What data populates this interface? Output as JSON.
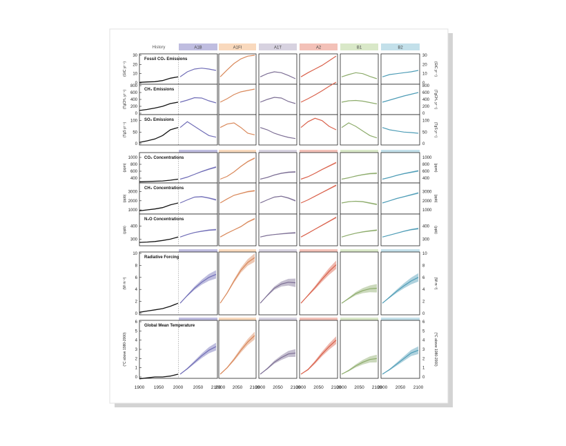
{
  "figure": {
    "history_label": "History",
    "scenarios": [
      {
        "name": "A1B",
        "color": "#6f6cb6",
        "tab": "#bfbde0"
      },
      {
        "name": "A1FI",
        "color": "#d9885a",
        "tab": "#f9d9bd"
      },
      {
        "name": "A1T",
        "color": "#7c6e94",
        "tab": "#d7d2e0"
      },
      {
        "name": "A2",
        "color": "#d9604a",
        "tab": "#f3c1b8"
      },
      {
        "name": "B1",
        "color": "#8cab6a",
        "tab": "#d9e8c8"
      },
      {
        "name": "B2",
        "color": "#4d9cb6",
        "tab": "#c3e0ea"
      }
    ],
    "panels": [
      {
        "title": "Fossil CO₂ Emissions",
        "unit_left": "(GtC yr⁻¹)",
        "unit_right": "(GtC yr⁻¹)",
        "ticks": [
          "0",
          "10",
          "20",
          "30"
        ]
      },
      {
        "title": "CH₄ Emissions",
        "unit_left": "(TgCH₄ yr⁻¹)",
        "unit_right": "(TgCH₄ yr⁻¹)",
        "ticks": [
          "0",
          "200",
          "400",
          "600",
          "800"
        ]
      },
      {
        "title": "SO₂ Emissions",
        "unit_left": "(TgS yr⁻¹)",
        "unit_right": "(TgS yr⁻¹)",
        "ticks": [
          "0",
          "50",
          "100"
        ]
      },
      {
        "title": "CO₂ Concentrations",
        "unit_left": "(ppm)",
        "unit_right": "(ppm)",
        "ticks": [
          "400",
          "600",
          "800",
          "1000"
        ]
      },
      {
        "title": "CH₄ Concentrations",
        "unit_left": "(ppb)",
        "unit_right": "(ppb)",
        "ticks": [
          "1000",
          "2000",
          "3000"
        ]
      },
      {
        "title": "N₂O Concentrations",
        "unit_left": "(ppb)",
        "unit_right": "(ppb)",
        "ticks": [
          "300",
          "400"
        ]
      },
      {
        "title": "Radiative Forcing",
        "unit_left": "(W m⁻²)",
        "unit_right": "(W m⁻²)",
        "ticks": [
          "0",
          "2",
          "4",
          "6",
          "8",
          "10"
        ]
      },
      {
        "title": "Global Mean Temperature",
        "unit_left": "(°C above 1980-2000)",
        "unit_right": "(°C above 1980-2000)",
        "ticks": [
          "0",
          "1",
          "2",
          "3",
          "4",
          "5",
          "6"
        ]
      }
    ],
    "x_ticks_history": [
      "1900",
      "1950",
      "2000"
    ],
    "x_ticks_scenario": [
      "2000",
      "2050",
      "2100"
    ]
  },
  "chart_data": {
    "type": "line",
    "x_history": [
      1900,
      1920,
      1940,
      1960,
      1980,
      2000
    ],
    "x_scenario": [
      2000,
      2020,
      2040,
      2060,
      2080,
      2100
    ],
    "series": [
      {
        "variable": "Fossil CO₂ Emissions",
        "ylim": [
          0,
          30
        ],
        "history": [
          0.5,
          1,
          1.3,
          2.5,
          5,
          6.5
        ],
        "scenarios": {
          "A1B": [
            6.5,
            12,
            15,
            16,
            15,
            13.5
          ],
          "A1FI": [
            6.5,
            14,
            21,
            26,
            29,
            30
          ],
          "A1T": [
            6.5,
            10,
            12,
            11,
            8,
            4.5
          ],
          "A2": [
            6.5,
            11,
            15,
            19,
            24,
            29
          ],
          "B1": [
            6.5,
            9,
            11,
            10,
            7,
            4.5
          ],
          "B2": [
            6.5,
            9,
            10,
            11,
            12,
            13.5
          ]
        }
      },
      {
        "variable": "CH₄ Emissions",
        "ylim": [
          0,
          800
        ],
        "history": [
          80,
          110,
          150,
          200,
          280,
          320
        ],
        "scenarios": {
          "A1B": [
            320,
            380,
            450,
            440,
            360,
            300
          ],
          "A1FI": [
            320,
            420,
            540,
            620,
            660,
            700
          ],
          "A1T": [
            320,
            400,
            460,
            440,
            340,
            280
          ],
          "A2": [
            320,
            420,
            530,
            650,
            780,
            900
          ],
          "B1": [
            320,
            360,
            370,
            350,
            310,
            270
          ],
          "B2": [
            320,
            380,
            440,
            500,
            550,
            600
          ]
        }
      },
      {
        "variable": "SO₂ Emissions",
        "ylim": [
          0,
          120
        ],
        "history": [
          5,
          12,
          20,
          35,
          60,
          70
        ],
        "scenarios": {
          "A1B": [
            70,
            95,
            75,
            55,
            35,
            28
          ],
          "A1FI": [
            70,
            85,
            90,
            70,
            45,
            38
          ],
          "A1T": [
            70,
            60,
            45,
            35,
            27,
            22
          ],
          "A2": [
            70,
            95,
            110,
            100,
            75,
            60
          ],
          "B1": [
            70,
            90,
            75,
            55,
            35,
            25
          ],
          "B2": [
            70,
            60,
            55,
            50,
            48,
            45
          ]
        }
      },
      {
        "variable": "CO₂ Concentrations",
        "ylim": [
          300,
          1100
        ],
        "history": [
          295,
          303,
          310,
          318,
          340,
          370
        ],
        "scenarios": {
          "A1B": [
            370,
            430,
            510,
            590,
            660,
            720
          ],
          "A1FI": [
            370,
            450,
            580,
            740,
            880,
            980
          ],
          "A1T": [
            370,
            420,
            490,
            540,
            570,
            580
          ],
          "A2": [
            370,
            440,
            540,
            650,
            750,
            850
          ],
          "B1": [
            370,
            410,
            460,
            500,
            530,
            540
          ],
          "B2": [
            370,
            420,
            480,
            530,
            570,
            610
          ]
        }
      },
      {
        "variable": "CH₄ Concentrations",
        "ylim": [
          700,
          3800
        ],
        "history": [
          900,
          1000,
          1100,
          1250,
          1550,
          1760
        ],
        "scenarios": {
          "A1B": [
            1760,
            2100,
            2400,
            2450,
            2300,
            2100
          ],
          "A1FI": [
            1760,
            2200,
            2600,
            2800,
            3000,
            3100
          ],
          "A1T": [
            1760,
            2100,
            2400,
            2500,
            2300,
            2000
          ],
          "A2": [
            1760,
            2100,
            2500,
            2900,
            3300,
            3700
          ],
          "B1": [
            1760,
            1900,
            1950,
            1900,
            1750,
            1600
          ],
          "B2": [
            1760,
            2000,
            2250,
            2450,
            2650,
            2850
          ]
        }
      },
      {
        "variable": "N₂O Concentrations",
        "ylim": [
          260,
          480
        ],
        "history": [
          275,
          278,
          282,
          290,
          300,
          316
        ],
        "scenarios": {
          "A1B": [
            316,
            335,
            350,
            360,
            368,
            372
          ],
          "A1FI": [
            316,
            345,
            370,
            395,
            430,
            455
          ],
          "A1T": [
            316,
            328,
            335,
            340,
            345,
            348
          ],
          "A2": [
            316,
            345,
            375,
            405,
            435,
            465
          ],
          "B1": [
            316,
            332,
            345,
            355,
            362,
            368
          ],
          "B2": [
            316,
            330,
            345,
            360,
            372,
            380
          ]
        }
      },
      {
        "variable": "Radiative Forcing",
        "ylim": [
          0,
          10
        ],
        "history": [
          0.2,
          0.4,
          0.6,
          0.8,
          1.2,
          1.7
        ],
        "scenarios": {
          "A1B": [
            1.7,
            3.0,
            4.2,
            5.2,
            6.0,
            6.5
          ],
          "A1FI": [
            1.7,
            3.4,
            5.4,
            7.2,
            8.5,
            9.3
          ],
          "A1T": [
            1.7,
            3.0,
            4.2,
            4.9,
            5.2,
            5.1
          ],
          "A2": [
            1.7,
            3.0,
            4.3,
            5.7,
            7.0,
            8.1
          ],
          "B1": [
            1.7,
            2.5,
            3.3,
            3.8,
            4.1,
            4.2
          ],
          "B2": [
            1.7,
            2.7,
            3.7,
            4.6,
            5.4,
            6.0
          ]
        }
      },
      {
        "variable": "Global Mean Temperature",
        "ylim": [
          0,
          6
        ],
        "history": [
          -0.2,
          -0.1,
          0.0,
          0.0,
          0.1,
          0.3
        ],
        "scenarios": {
          "A1B": [
            0.3,
            0.9,
            1.6,
            2.3,
            2.9,
            3.3
          ],
          "A1FI": [
            0.3,
            1.0,
            1.9,
            2.9,
            3.8,
            4.5
          ],
          "A1T": [
            0.3,
            0.9,
            1.6,
            2.1,
            2.5,
            2.6
          ],
          "A2": [
            0.3,
            0.8,
            1.6,
            2.5,
            3.3,
            4.0
          ],
          "B1": [
            0.3,
            0.7,
            1.2,
            1.6,
            1.9,
            2.0
          ],
          "B2": [
            0.3,
            0.8,
            1.4,
            2.0,
            2.6,
            2.9
          ]
        }
      }
    ]
  }
}
